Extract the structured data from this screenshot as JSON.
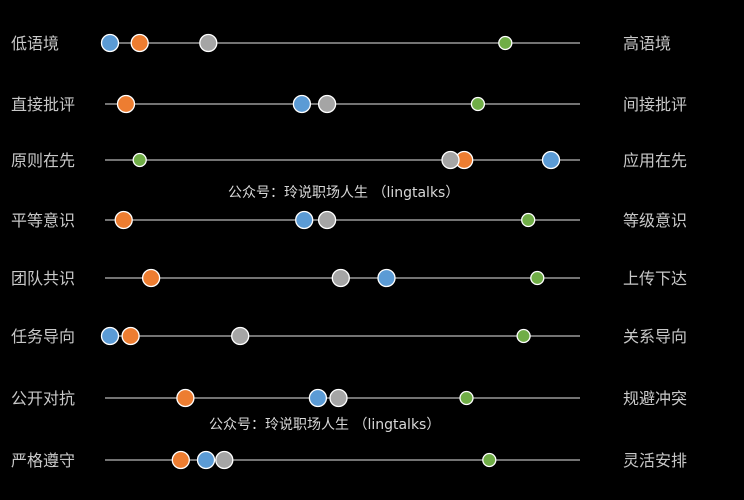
{
  "chart_data": {
    "type": "scatter",
    "title": "",
    "xlim": [
      0,
      100
    ],
    "series": [],
    "point_colors": {
      "orange": "#ED7D31",
      "blue": "#5B9BD5",
      "gray": "#A5A5A5",
      "green": "#70AD47"
    },
    "rows": [
      {
        "left": "低语境",
        "right": "高语境",
        "orange": 6.5,
        "blue": 0,
        "gray": 21.5,
        "green": 86.5
      },
      {
        "left": "直接批评",
        "right": "间接批评",
        "orange": 3.5,
        "blue": 42.0,
        "gray": 47.5,
        "green": 80.5
      },
      {
        "left": "原则在先",
        "right": "应用在先",
        "orange": 77.5,
        "blue": 96.5,
        "gray": 74.5,
        "green": 6.5
      },
      {
        "left": "平等意识",
        "right": "等级意识",
        "orange": 3.0,
        "blue": 42.5,
        "gray": 47.5,
        "green": 91.5
      },
      {
        "left": "团队共识",
        "right": "上传下达",
        "orange": 9.0,
        "blue": 60.5,
        "gray": 50.5,
        "green": 93.5
      },
      {
        "left": "任务导向",
        "right": "关系导向",
        "orange": 4.5,
        "blue": 0,
        "gray": 28.5,
        "green": 90.5
      },
      {
        "left": "公开对抗",
        "right": "规避冲突",
        "orange": 16.5,
        "blue": 45.5,
        "gray": 50.0,
        "green": 78.0
      },
      {
        "left": "严格遵守",
        "right": "灵活安排",
        "orange": 15.5,
        "blue": 21.0,
        "gray": 25.0,
        "green": 83.0
      }
    ]
  },
  "watermarks": [
    "公众号：玲说职场人生 （lingtalks）",
    "公众号：玲说职场人生 （lingtalks）"
  ]
}
